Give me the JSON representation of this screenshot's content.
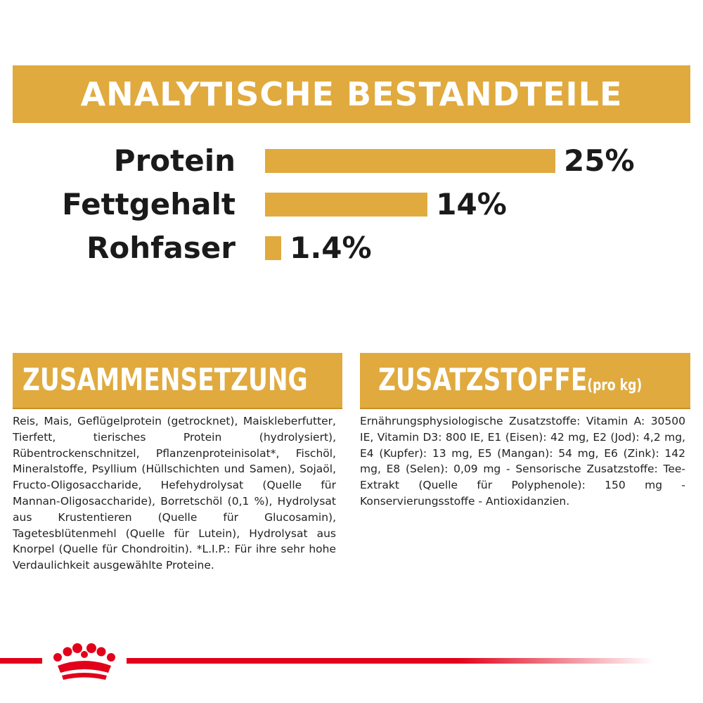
{
  "header": {
    "title": "ANALYTISCHE BESTANDTEILE"
  },
  "chart_data": {
    "type": "bar",
    "orientation": "horizontal",
    "categories": [
      "Protein",
      "Fettgehalt",
      "Rohfaser"
    ],
    "values": [
      25,
      14,
      1.4
    ],
    "value_labels": [
      "25%",
      "14%",
      "1.4%"
    ],
    "color": "#e0aa3e"
  },
  "composition": {
    "title": "ZUSAMMENSETZUNG",
    "text": "Reis, Mais, Geflügelprotein (getrocknet), Maiskleberfutter, Tierfett, tierisches Protein (hydrolysiert), Rübentrockenschnitzel, Pflanzenproteinisolat*, Fischöl, Mineralstoffe, Psyllium (Hüllschichten und Samen), Sojaöl, Fructo-Oligosaccharide, Hefehydrolysat (Quelle für Mannan-Oligosaccharide), Borretschöl (0,1 %), Hydrolysat aus Krustentieren (Quelle für Glucosamin), Tagetesblütenmehl (Quelle für Lutein), Hydrolysat aus Knorpel (Quelle für Chondroitin). *L.I.P.: Für ihre sehr hohe Verdaulichkeit ausgewählte Proteine."
  },
  "additives": {
    "title": "ZUSATZSTOFFE",
    "unit": "(pro kg)",
    "text": "Ernährungsphysiologische Zusatzstoffe: Vitamin A: 30500 IE, Vitamin D3: 800 IE, E1 (Eisen): 42 mg, E2 (Jod): 4,2 mg, E4 (Kupfer): 13 mg, E5 (Mangan): 54 mg, E6 (Zink): 142 mg, E8 (Selen): 0,09 mg - Sensorische Zusatzstoffe: Tee-Extrakt (Quelle für Polyphenole): 150 mg - Konservierungsstoffe - Antioxidanzien."
  }
}
